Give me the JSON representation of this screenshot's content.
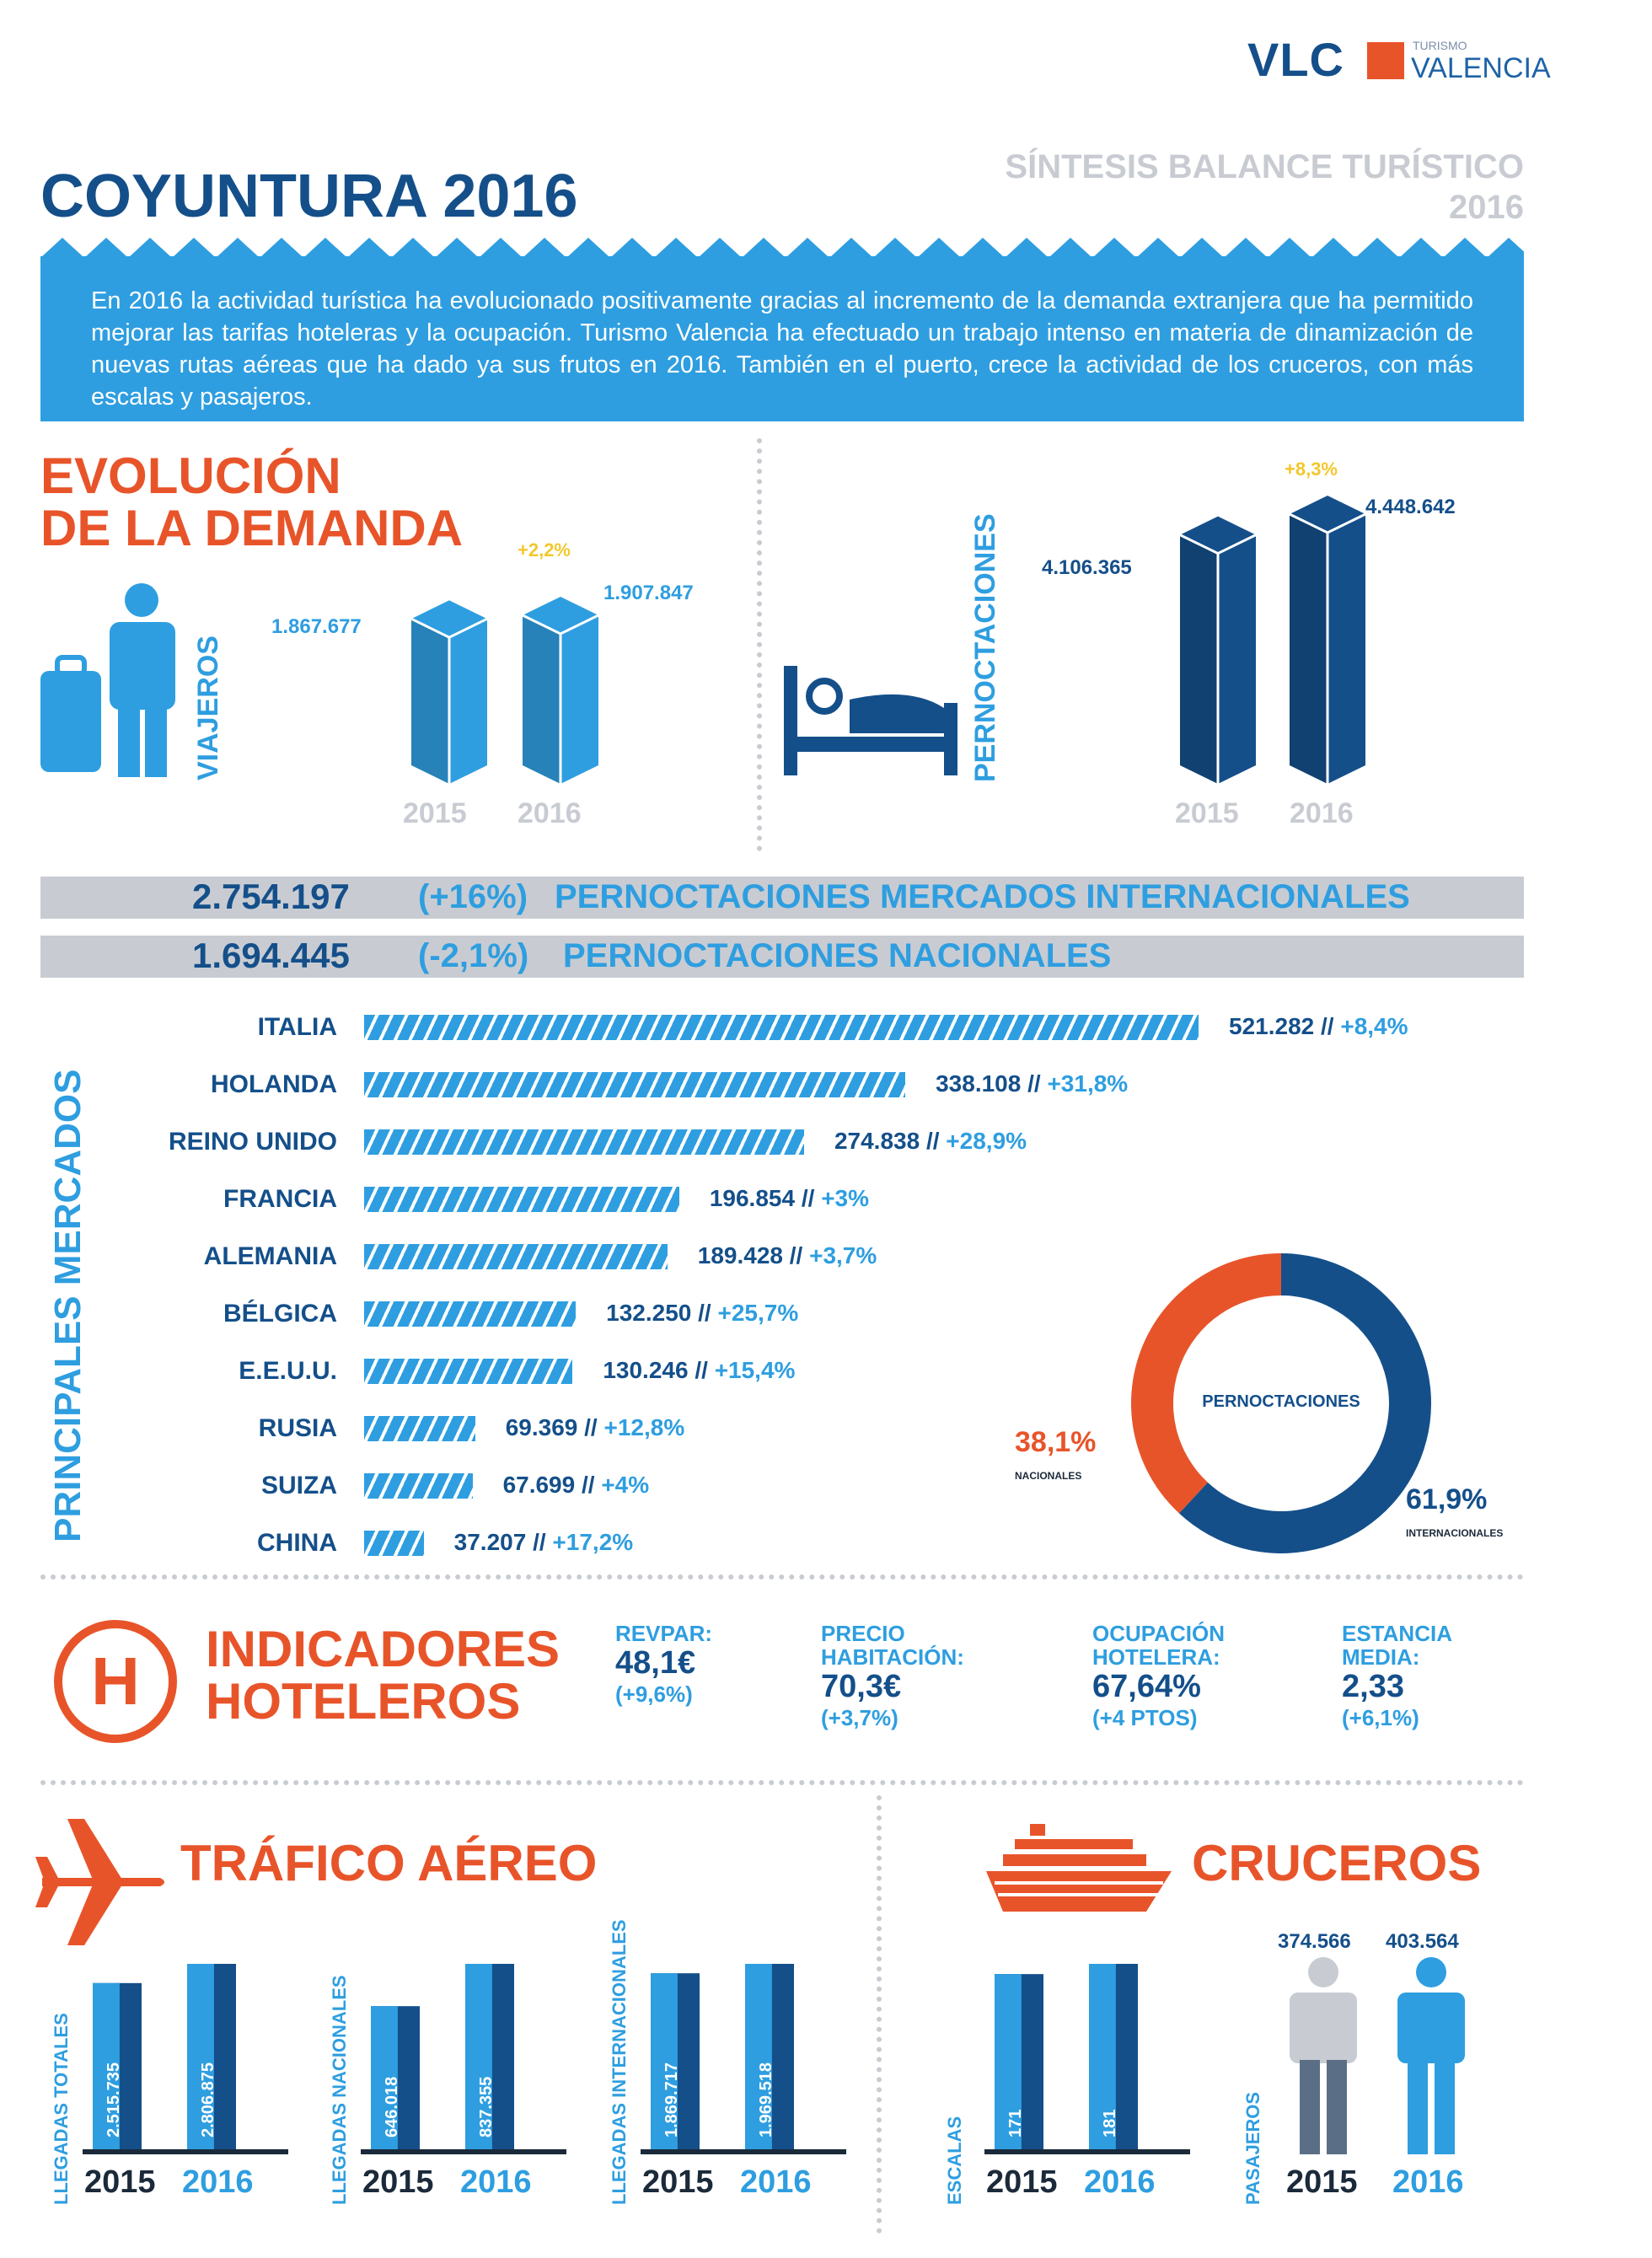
{
  "logo": {
    "brand": "VLC",
    "line1": "TURISMO",
    "line2": "VALENCIA"
  },
  "header": {
    "title": "COYUNTURA 2016",
    "subtitle_line1": "SÍNTESIS BALANCE TURÍSTICO",
    "subtitle_line2": "2016"
  },
  "intro": "En 2016 la actividad turística ha evolucionado positivamente gracias al incremento de la demanda extranjera que ha permitido mejorar las tarifas hoteleras y la ocupación. Turismo Valencia ha efectuado un trabajo intenso en materia de dinamización de nuevas rutas aéreas que ha dado ya sus frutos en 2016. También en el puerto, crece la actividad de los cruceros, con más escalas y pasajeros.",
  "demand": {
    "title_line1": "EVOLUCIÓN",
    "title_line2": "DE LA DEMANDA",
    "colors": {
      "light": "#2e9ee0",
      "dark": "#144f8a",
      "accent": "#e8542a",
      "yellow": "#f3c72b"
    }
  },
  "strips": [
    {
      "value": "2.754.197",
      "change": "(+16%)",
      "label": "PERNOCTACIONES MERCADOS INTERNACIONALES"
    },
    {
      "value": "1.694.445",
      "change": "(-2,1%)",
      "label": "PERNOCTACIONES NACIONALES"
    }
  ],
  "markets_label": "PRINCIPALES MERCADOS",
  "hotel": {
    "title_line1": "INDICADORES",
    "title_line2": "HOTELEROS",
    "icon": "hotel-h-icon",
    "items": [
      {
        "label_l1": "REVPAR:",
        "label_l2": "",
        "value": "48,1€",
        "change": "(+9,6%)"
      },
      {
        "label_l1": "PRECIO",
        "label_l2": "HABITACIÓN:",
        "value": "70,3€",
        "change": "(+3,7%)"
      },
      {
        "label_l1": "OCUPACIÓN",
        "label_l2": "HOTELERA:",
        "value": "67,64%",
        "change": "(+4 PTOS)"
      },
      {
        "label_l1": "ESTANCIA",
        "label_l2": "MEDIA:",
        "value": "2,33",
        "change": "(+6,1%)"
      }
    ]
  },
  "air": {
    "title": "TRÁFICO AÉREO",
    "icon": "airplane-icon"
  },
  "cruise": {
    "title": "CRUCEROS",
    "icon": "ship-icon"
  },
  "chart_data": [
    {
      "type": "bar",
      "name": "VIAJEROS",
      "ylabel": "VIAJEROS",
      "categories": [
        "2015",
        "2016"
      ],
      "values": [
        1867677,
        1907847
      ],
      "value_labels": [
        "1.867.677",
        "1.907.847"
      ],
      "change_label": "+2,2%"
    },
    {
      "type": "bar",
      "name": "PERNOCTACIONES",
      "ylabel": "PERNOCTACIONES",
      "categories": [
        "2015",
        "2016"
      ],
      "values": [
        4106365,
        4448642
      ],
      "value_labels": [
        "4.106.365",
        "4.448.642"
      ],
      "change_label": "+8,3%"
    },
    {
      "type": "bar",
      "orientation": "horizontal",
      "categories": [
        "ITALIA",
        "HOLANDA",
        "REINO UNIDO",
        "FRANCIA",
        "ALEMANIA",
        "BÉLGICA",
        "E.E.U.U.",
        "RUSIA",
        "SUIZA",
        "CHINA"
      ],
      "values": [
        521282,
        338108,
        274838,
        196854,
        189428,
        132250,
        130246,
        69369,
        67699,
        37207
      ],
      "value_labels": [
        "521.282",
        "338.108",
        "274.838",
        "196.854",
        "189.428",
        "132.250",
        "130.246",
        "69.369",
        "67.699",
        "37.207"
      ],
      "changes": [
        "+8,4%",
        "+31,8%",
        "+28,9%",
        "+3%",
        "+3,7%",
        "+25,7%",
        "+15,4%",
        "+12,8%",
        "+4%",
        "+17,2%"
      ]
    },
    {
      "type": "pie",
      "title": "PERNOCTACIONES",
      "labels": [
        "NACIONALES",
        "INTERNACIONALES"
      ],
      "values": [
        38.1,
        61.9
      ],
      "value_labels": [
        "38,1%",
        "61,9%"
      ],
      "colors": [
        "#e8542a",
        "#144f8a"
      ]
    },
    {
      "type": "bar",
      "ylabel": "LLEGADAS TOTALES",
      "categories": [
        "2015",
        "2016"
      ],
      "values": [
        2515,
        2806
      ],
      "value_labels": [
        "2.515.735",
        "2.806.875"
      ]
    },
    {
      "type": "bar",
      "ylabel": "LLEGADAS NACIONALES",
      "categories": [
        "2015",
        "2016"
      ],
      "values": [
        646,
        837
      ],
      "value_labels": [
        "646.018",
        "837.355"
      ]
    },
    {
      "type": "bar",
      "ylabel": "LLEGADAS INTERNACIONALES",
      "categories": [
        "2015",
        "2016"
      ],
      "values": [
        1869,
        1969
      ],
      "value_labels": [
        "1.869.717",
        "1.969.518"
      ]
    },
    {
      "type": "bar",
      "ylabel": "ESCALAS",
      "categories": [
        "2015",
        "2016"
      ],
      "values": [
        171,
        181
      ],
      "value_labels": [
        "171",
        "181"
      ]
    },
    {
      "type": "pictograph",
      "ylabel": "PASAJEROS",
      "categories": [
        "2015",
        "2016"
      ],
      "values": [
        374566,
        403564
      ],
      "value_labels": [
        "374.566",
        "403.564"
      ]
    }
  ]
}
